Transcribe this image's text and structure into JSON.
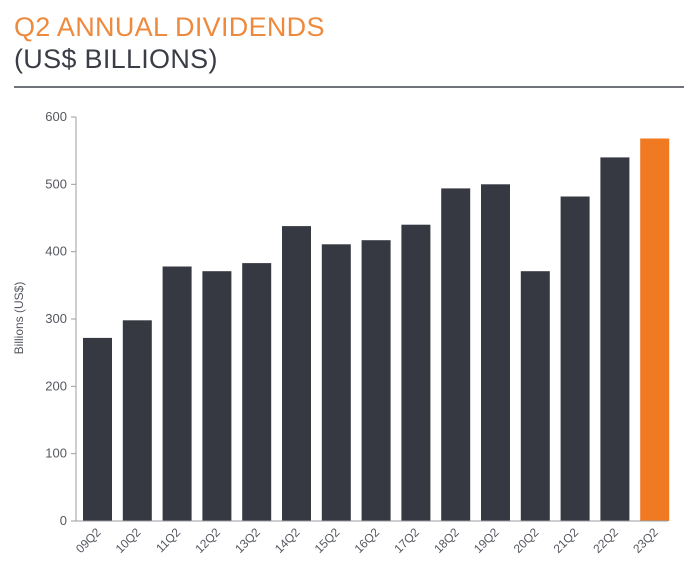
{
  "chart_data": {
    "type": "bar",
    "title": "Q2 ANNUAL DIVIDENDS",
    "subtitle": "(US$ BILLIONS)",
    "ylabel": "Billions (US$)",
    "xlabel": "",
    "ylim": [
      0,
      600
    ],
    "yticks": [
      0,
      100,
      200,
      300,
      400,
      500,
      600
    ],
    "categories": [
      "09Q2",
      "10Q2",
      "11Q2",
      "12Q2",
      "13Q2",
      "14Q2",
      "15Q2",
      "16Q2",
      "17Q2",
      "18Q2",
      "19Q2",
      "20Q2",
      "21Q2",
      "22Q2",
      "23Q2"
    ],
    "values": [
      272,
      298,
      378,
      371,
      383,
      438,
      411,
      417,
      440,
      494,
      500,
      371,
      482,
      540,
      568
    ],
    "highlight_index": 14,
    "grid": false,
    "legend": "none"
  },
  "colors": {
    "title": "#EE8A3E",
    "subtitle": "#3a3d45",
    "bar": "#363942",
    "bar_highlight": "#F07A22",
    "axis": "#9a9ca1"
  }
}
